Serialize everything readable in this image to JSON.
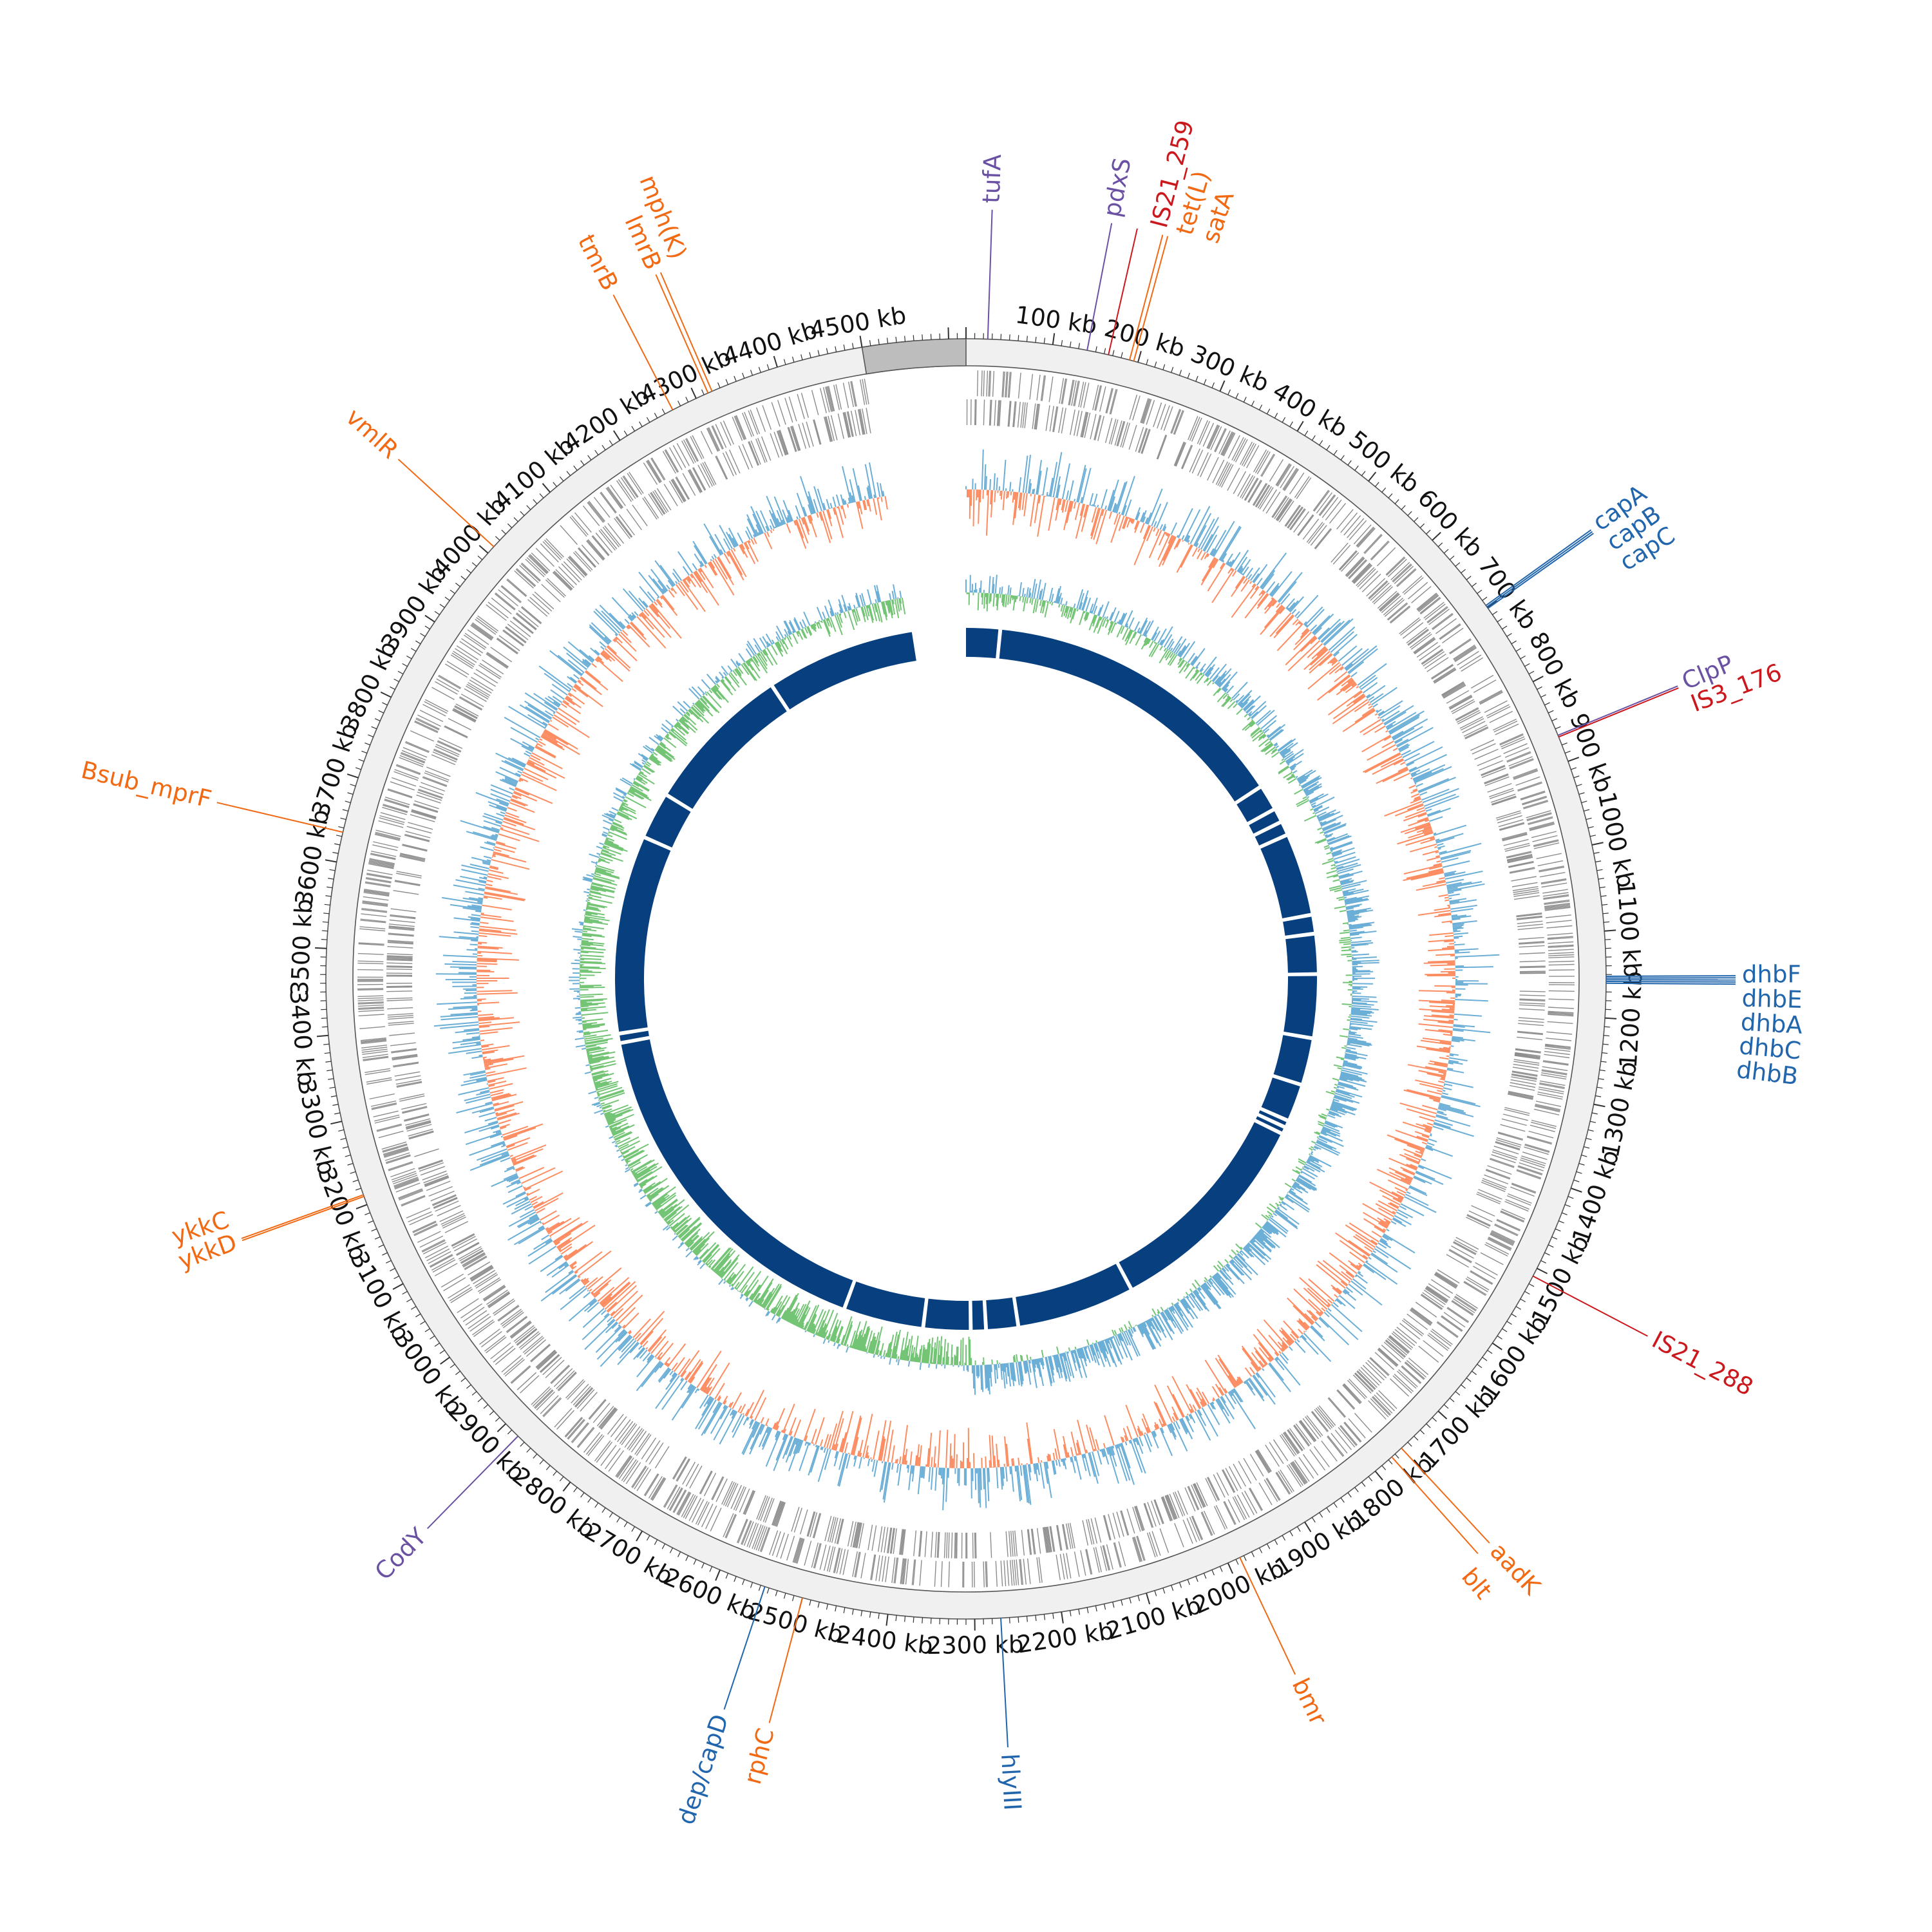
{
  "genome": {
    "length_kb": 4620,
    "scale_labels": [
      "100 kb",
      "200 kb",
      "300 kb",
      "400 kb",
      "500 kb",
      "600 kb",
      "700 kb",
      "800 kb",
      "900 kb",
      "1000 kb",
      "1100 kb",
      "1200 kb",
      "1300 kb",
      "1400 kb",
      "1500 kb",
      "1600 kb",
      "1700 kb",
      "1800 kb",
      "1900 kb",
      "2000 kb",
      "2100 kb",
      "2200 kb",
      "2300 kb",
      "2400 kb",
      "2500 kb",
      "2600 kb",
      "2700 kb",
      "2800 kb",
      "2900 kb",
      "3000 kb",
      "3100 kb",
      "3200 kb",
      "3300 kb",
      "3400 kb",
      "3500 kb",
      "3600 kb",
      "3700 kb",
      "3800 kb",
      "3900 kb",
      "4000 kb",
      "4100 kb",
      "4200 kb",
      "4300 kb",
      "4400 kb",
      "4500 kb"
    ],
    "scale_values_kb": [
      100,
      200,
      300,
      400,
      500,
      600,
      700,
      800,
      900,
      1000,
      1100,
      1200,
      1300,
      1400,
      1500,
      1600,
      1700,
      1800,
      1900,
      2000,
      2100,
      2200,
      2300,
      2400,
      2500,
      2600,
      2700,
      2800,
      2900,
      3000,
      3100,
      3200,
      3300,
      3400,
      3500,
      3600,
      3700,
      3800,
      3900,
      4000,
      4100,
      4200,
      4300,
      4400,
      4500
    ],
    "gap_block_kb": [
      4500,
      4620
    ]
  },
  "colors": {
    "virulence": "#2166ac",
    "resistance": "#f16913",
    "mobile": "#cb181d",
    "regulator": "#6a51a3",
    "gc_above": "#fc8d62",
    "gc_below": "#6baed6",
    "skew_pos": "#74c476",
    "skew_neg": "#6baed6",
    "blocks": "#08407f",
    "cds": "#8c8c8c"
  },
  "annotations": [
    {
      "label": "tufA",
      "kb": 25,
      "category": "regulator"
    },
    {
      "label": "pdxS",
      "kb": 140,
      "category": "regulator"
    },
    {
      "label": "IS21_259",
      "kb": 165,
      "category": "mobile"
    },
    {
      "label": "tet(L)",
      "kb": 190,
      "category": "resistance"
    },
    {
      "label": "satA",
      "kb": 195,
      "category": "resistance"
    },
    {
      "label": "capA",
      "kb": 697,
      "category": "virulence"
    },
    {
      "label": "capB",
      "kb": 699,
      "category": "virulence"
    },
    {
      "label": "capC",
      "kb": 701,
      "category": "virulence"
    },
    {
      "label": "ClpP",
      "kb": 868,
      "category": "regulator"
    },
    {
      "label": "IS3_176",
      "kb": 870,
      "category": "mobile"
    },
    {
      "label": "dhbF",
      "kb": 1152,
      "category": "virulence"
    },
    {
      "label": "dhbE",
      "kb": 1154,
      "category": "virulence"
    },
    {
      "label": "dhbA",
      "kb": 1156,
      "category": "virulence"
    },
    {
      "label": "dhbC",
      "kb": 1158,
      "category": "virulence"
    },
    {
      "label": "dhbB",
      "kb": 1160,
      "category": "virulence"
    },
    {
      "label": "IS21_288",
      "kb": 1510,
      "category": "mobile"
    },
    {
      "label": "aadK",
      "kb": 1760,
      "category": "resistance"
    },
    {
      "label": "blt",
      "kb": 1775,
      "category": "resistance"
    },
    {
      "label": "bmr",
      "kb": 1985,
      "category": "resistance"
    },
    {
      "label": "hlyIII",
      "kb": 2270,
      "category": "virulence"
    },
    {
      "label": "rphC",
      "kb": 2500,
      "category": "resistance"
    },
    {
      "label": "dep/capD",
      "kb": 2545,
      "category": "virulence"
    },
    {
      "label": "CodY",
      "kb": 2880,
      "category": "regulator"
    },
    {
      "label": "ykkD",
      "kb": 3210,
      "category": "resistance"
    },
    {
      "label": "ykkC",
      "kb": 3212,
      "category": "resistance"
    },
    {
      "label": "Bsub_mprF",
      "kb": 3635,
      "category": "resistance"
    },
    {
      "label": "vmlR",
      "kb": 4010,
      "category": "resistance"
    },
    {
      "label": "tmrB",
      "kb": 4270,
      "category": "resistance"
    },
    {
      "label": "lmrB",
      "kb": 4315,
      "category": "resistance"
    },
    {
      "label": "mph(K)",
      "kb": 4320,
      "category": "resistance"
    }
  ],
  "synteny_gaps_kb": [
    72,
    730,
    785,
    815,
    845,
    1020,
    1060,
    1145,
    1280,
    1380,
    1460,
    1475,
    1490,
    1950,
    2200,
    2268,
    2300,
    2400,
    2570,
    3330,
    3350,
    3770,
    3870,
    4190,
    4510
  ]
}
